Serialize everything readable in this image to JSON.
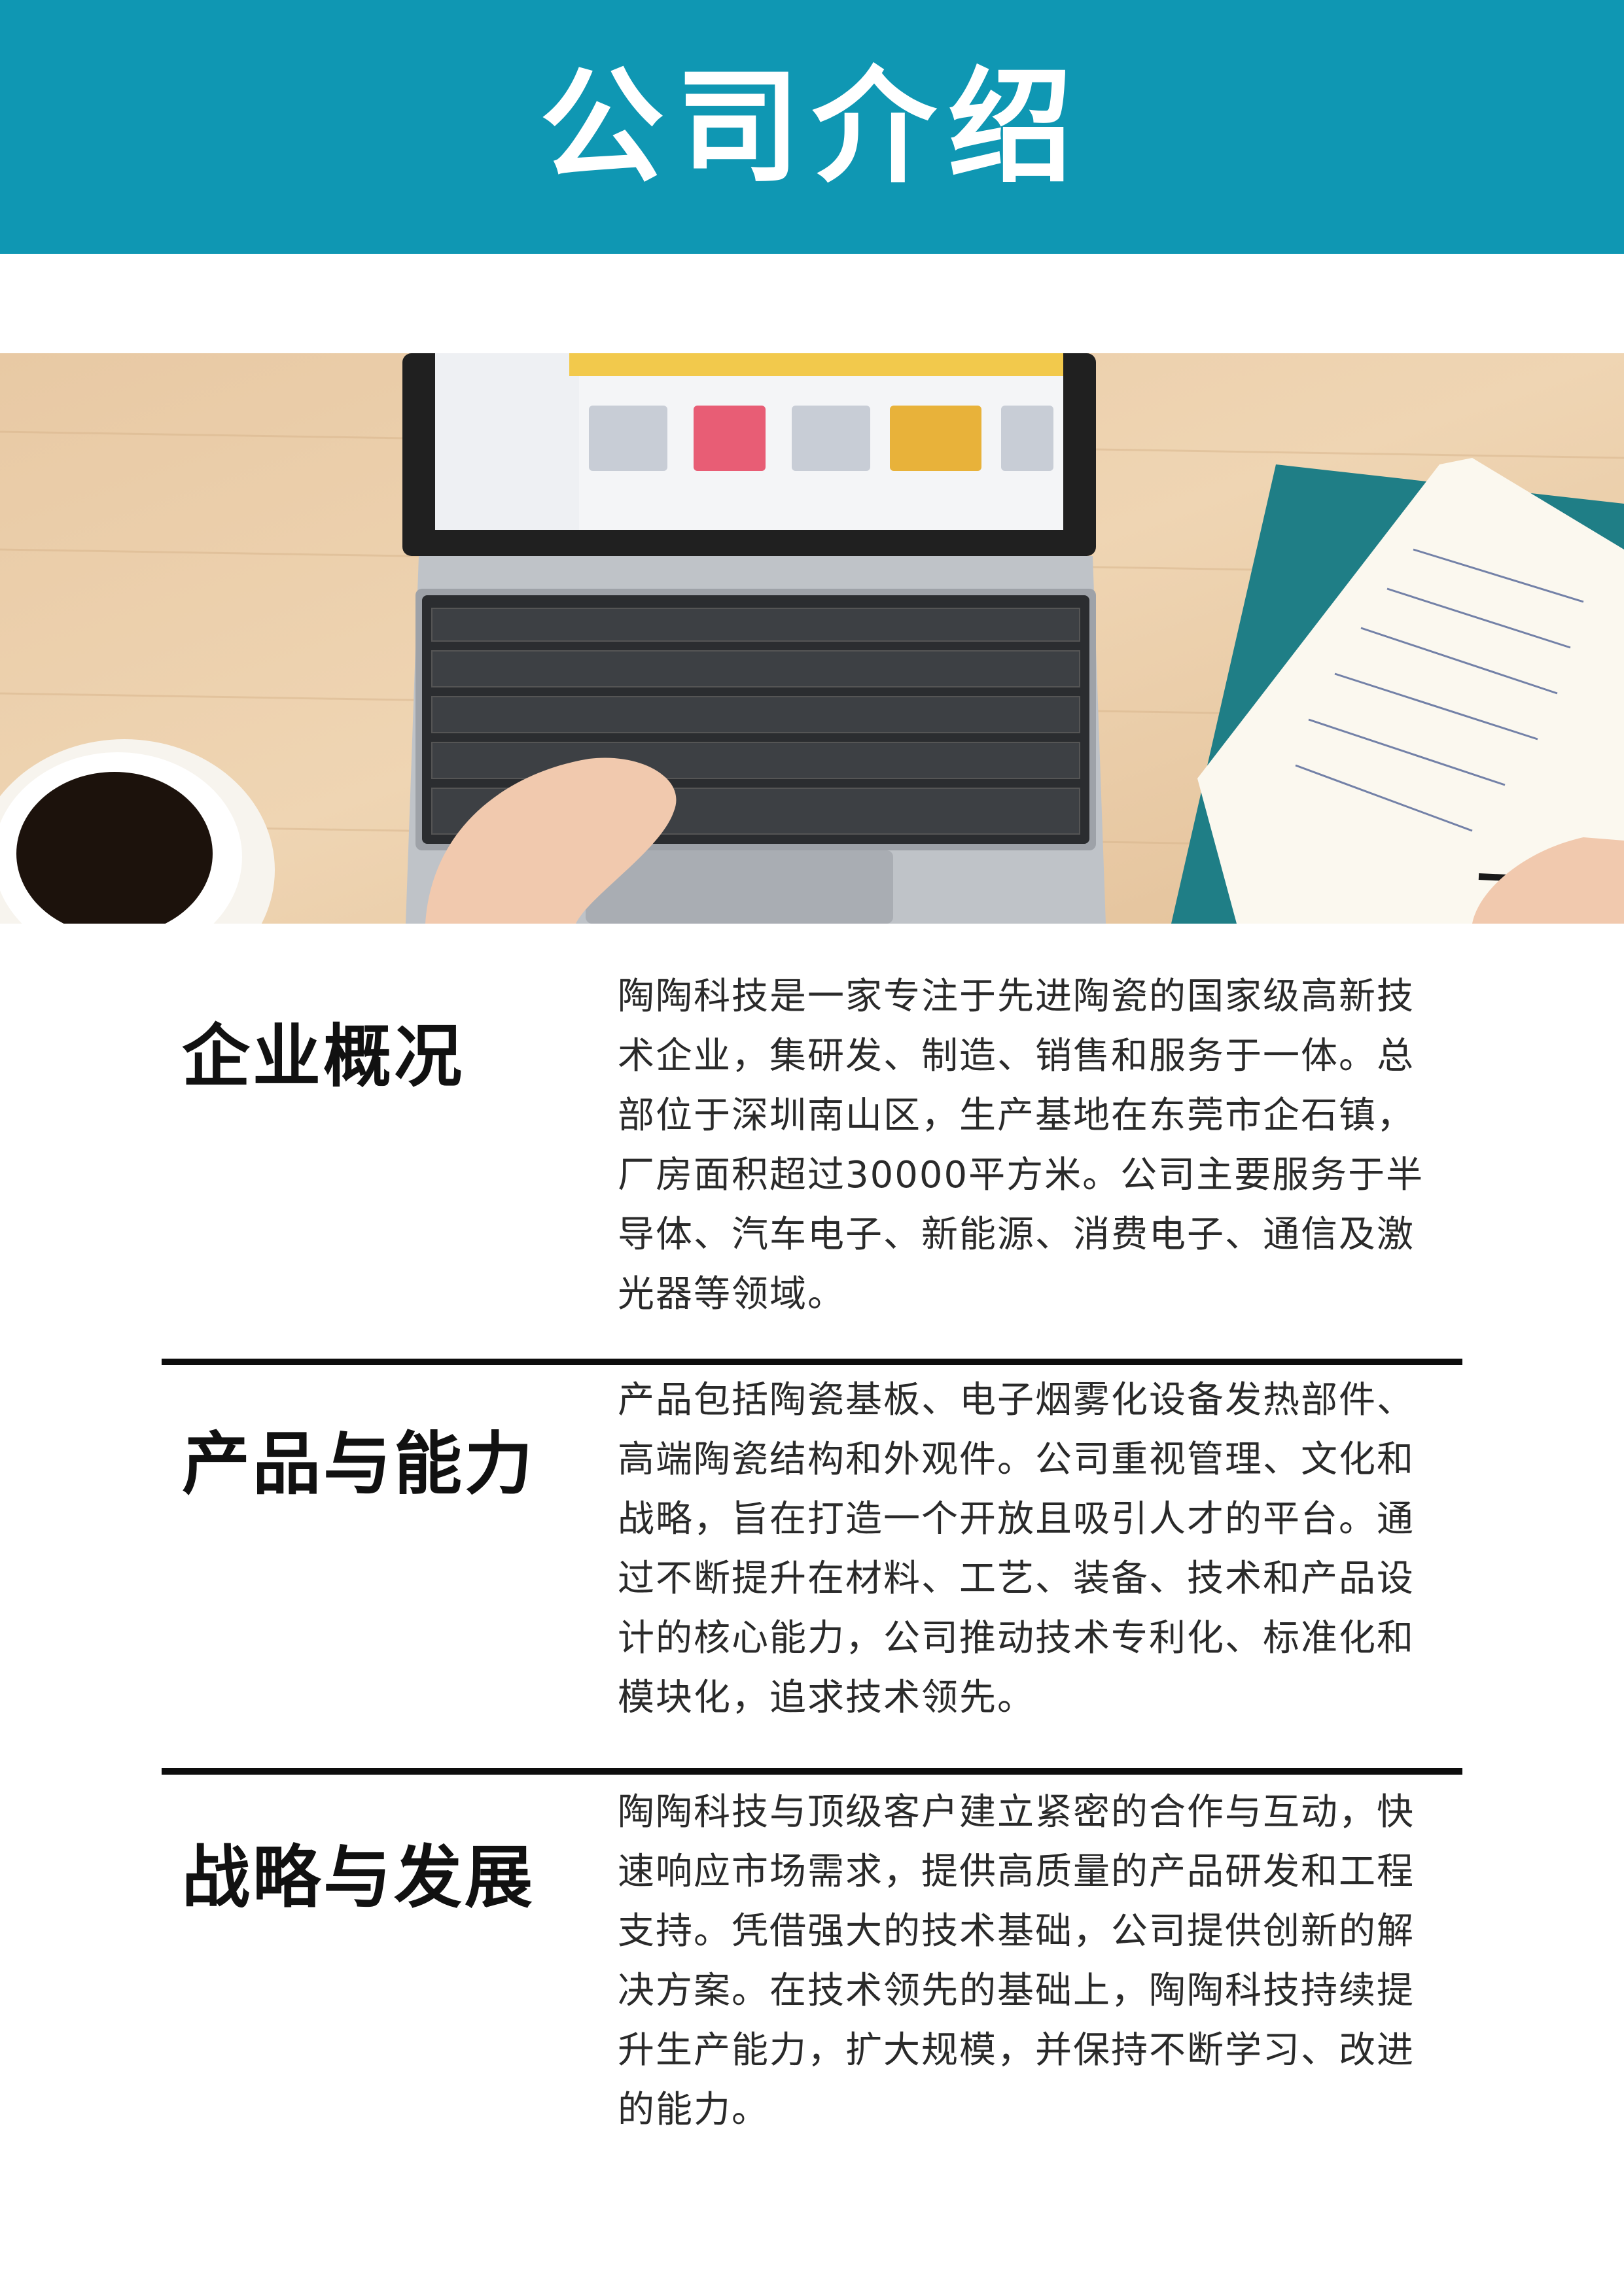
{
  "header": {
    "title": "公司介绍",
    "color": "#0f97b3"
  },
  "photo": {
    "alt": "laptop-desk-photo"
  },
  "sections": [
    {
      "heading": "企业概况",
      "lines": [
        "陶陶科技是一家专注于先进陶瓷的国家级高新技",
        "术企业，集研发、制造、销售和服务于一体。总",
        "部位于深圳南山区，生产基地在东莞市企石镇，",
        "厂房面积超过30000平方米。公司主要服务于半",
        "导体、汽车电子、新能源、消费电子、通信及激",
        "光器等领域。"
      ]
    },
    {
      "heading": "产品与能力",
      "lines": [
        "产品包括陶瓷基板、电子烟雾化设备发热部件、",
        "高端陶瓷结构和外观件。公司重视管理、文化和",
        "战略，旨在打造一个开放且吸引人才的平台。通",
        "过不断提升在材料、工艺、装备、技术和产品设",
        "计的核心能力，公司推动技术专利化、标准化和",
        "模块化，追求技术领先。"
      ]
    },
    {
      "heading": "战略与发展",
      "lines": [
        "陶陶科技与顶级客户建立紧密的合作与互动，快",
        "速响应市场需求，提供高质量的产品研发和工程",
        "支持。凭借强大的技术基础，公司提供创新的解",
        "决方案。在技术领先的基础上，陶陶科技持续提",
        "升生产能力，扩大规模，并保持不断学习、改进",
        "的能力。"
      ]
    }
  ]
}
